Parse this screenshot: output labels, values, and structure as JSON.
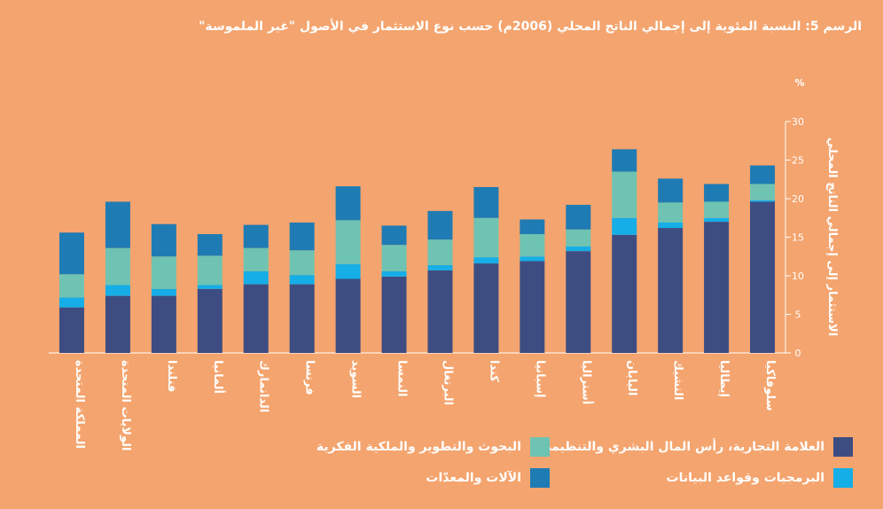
{
  "title": "الرسم 5: النسبة المئوية إلى إجمالي الناتج المحلي (2006م) حسب نوع الاستثمار في الأصول \"غير الملموسة\"",
  "chart_data": {
    "type": "bar",
    "stacked": true,
    "y_unit": "%",
    "ylabel": "الاستثمار إلى إجمالي الناتج المحلي",
    "ylim": [
      0,
      30
    ],
    "yticks": [
      0,
      5,
      10,
      15,
      20,
      25,
      30
    ],
    "categories": [
      "المملكة المتحدة",
      "الولايات المتحدة",
      "فنلندا",
      "ألمانيا",
      "الدانمارك",
      "فرنسا",
      "السويد",
      "النمسا",
      "البرتغال",
      "كندا",
      "إسبانيا",
      "أستراليا",
      "اليابان",
      "التشيك",
      "إيطاليا",
      "سلوفاكيا"
    ],
    "series": [
      {
        "name": "العلامة التجارية، رأس المال البشري والتنظيمي",
        "color": "#3D4D82",
        "values": [
          5.9,
          7.4,
          7.4,
          8.3,
          8.9,
          8.9,
          9.6,
          9.9,
          10.7,
          11.6,
          11.9,
          13.2,
          15.3,
          16.2,
          17.0,
          19.6
        ]
      },
      {
        "name": "البرمجيات وقواعد البيانات",
        "color": "#15AEE7",
        "values": [
          1.3,
          1.4,
          0.9,
          0.5,
          1.7,
          1.2,
          1.9,
          0.7,
          0.7,
          0.8,
          0.6,
          0.6,
          2.2,
          0.7,
          0.5,
          0.2
        ]
      },
      {
        "name": "البحوث والتطوير والملكية الفكرية",
        "color": "#6FC3B2",
        "values": [
          3.0,
          4.8,
          4.2,
          3.8,
          3.0,
          3.2,
          5.7,
          3.4,
          3.3,
          5.1,
          2.9,
          2.2,
          6.0,
          2.6,
          2.1,
          2.1
        ]
      },
      {
        "name": "الآلات والمعدّات",
        "color": "#1F7BB4",
        "values": [
          5.4,
          6.0,
          4.2,
          2.8,
          3.0,
          3.6,
          4.4,
          2.5,
          3.7,
          4.0,
          1.9,
          3.2,
          2.9,
          3.1,
          2.3,
          2.4
        ]
      }
    ]
  },
  "legend": {
    "s1": "العلامة التجارية، رأس المال البشري والتنظيمي",
    "s2": "البرمجيات وقواعد البيانات",
    "s3": "البحوث والتطوير والملكية الفكرية",
    "s4": "الآلات والمعدّات"
  }
}
